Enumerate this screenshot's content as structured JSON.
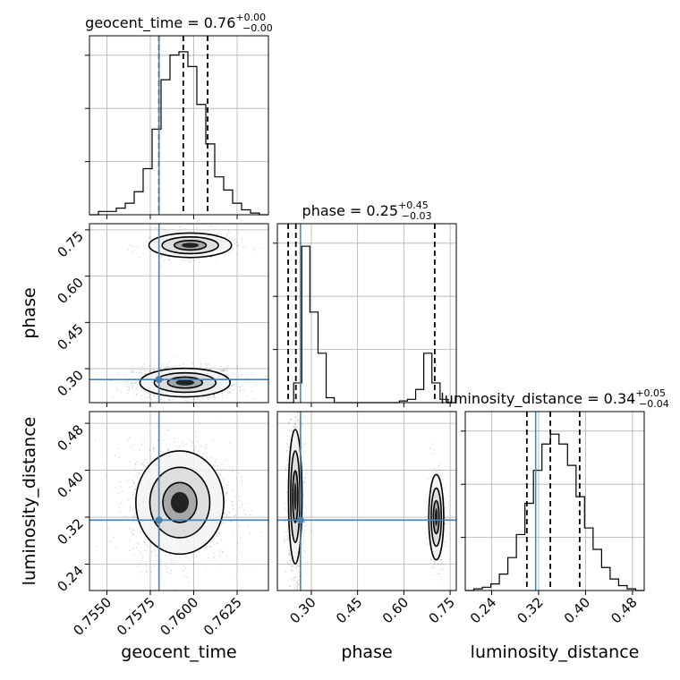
{
  "chart_data": {
    "type": "corner",
    "parameters": [
      "geocent_time",
      "phase",
      "luminosity_distance"
    ],
    "truth_color": "#4682b4",
    "truths": {
      "geocent_time": 0.758,
      "phase": 0.265,
      "luminosity_distance": 0.315
    },
    "panels": {
      "geocent_time": {
        "title_base": "geocent_time = 0.76",
        "title_plus": "+0.00",
        "title_minus": "−0.00",
        "xlim": [
          0.754,
          0.7643
        ],
        "quantiles": [
          0.758,
          0.7594,
          0.7608
        ],
        "hist": {
          "edges": [
            0.754,
            0.7643
          ],
          "counts": [
            0.0,
            0.02,
            0.02,
            0.04,
            0.07,
            0.14,
            0.28,
            0.52,
            0.82,
            0.97,
            0.99,
            0.9,
            0.67,
            0.43,
            0.23,
            0.15,
            0.07,
            0.03,
            0.01,
            0.0
          ]
        }
      },
      "phase": {
        "title_base": "phase = 0.25",
        "title_plus": "+0.45",
        "title_minus": "−0.03",
        "xlim": [
          0.19,
          0.77
        ],
        "quantiles": [
          0.225,
          0.25,
          0.7
        ],
        "hist": {
          "edges": [
            0.19,
            0.77
          ],
          "counts": [
            0,
            0,
            0.12,
            0.95,
            0.55,
            0.3,
            0.03,
            0,
            0,
            0,
            0,
            0,
            0,
            0,
            0,
            0.01,
            0.02,
            0.08,
            0.3,
            0.12,
            0.02,
            0
          ]
        }
      },
      "luminosity_distance": {
        "title_base": "luminosity_distance = 0.34",
        "title_plus": "+0.05",
        "title_minus": "−0.04",
        "xlim": [
          0.195,
          0.5
        ],
        "quantiles": [
          0.3,
          0.34,
          0.39
        ],
        "hist": {
          "edges": [
            0.195,
            0.5
          ],
          "counts": [
            0.0,
            0.01,
            0.02,
            0.04,
            0.1,
            0.2,
            0.34,
            0.53,
            0.73,
            0.89,
            0.95,
            0.89,
            0.76,
            0.57,
            0.38,
            0.25,
            0.14,
            0.07,
            0.03,
            0.01,
            0.0
          ]
        }
      }
    },
    "axes": {
      "geocent_time": {
        "label": "geocent_time",
        "ticks": [
          0.755,
          0.7575,
          0.76,
          0.7625
        ],
        "tick_labels": [
          "0.7550",
          "0.7575",
          "0.7600",
          "0.7625"
        ]
      },
      "phase": {
        "label": "phase",
        "ticks": [
          0.3,
          0.45,
          0.6,
          0.75
        ],
        "tick_labels": [
          "0.30",
          "0.45",
          "0.60",
          "0.75"
        ]
      },
      "luminosity_distance": {
        "label": "luminosity_distance",
        "ticks": [
          0.24,
          0.32,
          0.4,
          0.48
        ],
        "tick_labels": [
          "0.24",
          "0.32",
          "0.40",
          "0.48"
        ]
      }
    },
    "clusters": {
      "phase_vs_geocent_time": [
        {
          "x": 0.7595,
          "y": 0.255,
          "sx": 0.00118,
          "sy": 0.021,
          "w": 0.78
        },
        {
          "x": 0.7598,
          "y": 0.7,
          "sx": 0.00108,
          "sy": 0.018,
          "w": 0.22
        }
      ],
      "luminosity_distance_vs_geocent_time": [
        {
          "x": 0.7592,
          "y": 0.345,
          "sx": 0.00115,
          "sy": 0.04,
          "w": 1.0
        }
      ],
      "luminosity_distance_vs_phase": [
        {
          "x": 0.248,
          "y": 0.355,
          "sx": 0.01,
          "sy": 0.052,
          "w": 0.78
        },
        {
          "x": 0.705,
          "y": 0.32,
          "sx": 0.011,
          "sy": 0.033,
          "w": 0.22
        }
      ]
    },
    "grid": true
  }
}
